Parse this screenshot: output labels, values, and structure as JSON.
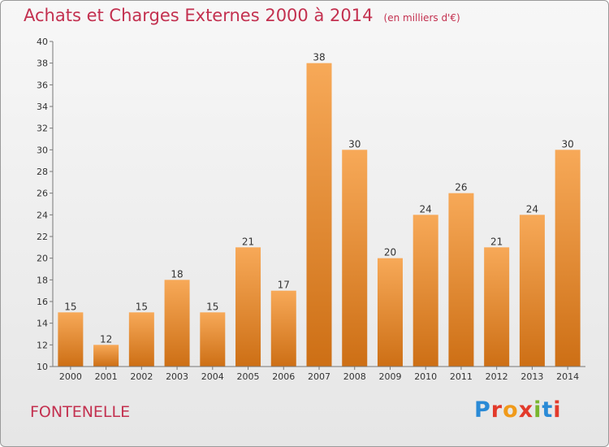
{
  "header": {
    "title": "Achats et Charges Externes 2000 à 2014",
    "unit_note": "(en milliers d'€)"
  },
  "footer": {
    "place": "FONTENELLE",
    "logo": "Proxiti"
  },
  "colors": {
    "title": "#c3304f",
    "bar_top": "#f7a958",
    "bar_bottom": "#cd6f15"
  },
  "chart_data": {
    "type": "bar",
    "title": "Achats et Charges Externes 2000 à 2014",
    "subtitle": "(en milliers d'€)",
    "categories": [
      "2000",
      "2001",
      "2002",
      "2003",
      "2004",
      "2005",
      "2006",
      "2007",
      "2008",
      "2009",
      "2010",
      "2011",
      "2012",
      "2013",
      "2014"
    ],
    "values": [
      15,
      12,
      15,
      18,
      15,
      21,
      17,
      38,
      30,
      20,
      24,
      26,
      21,
      24,
      30
    ],
    "ylim": [
      10,
      40
    ],
    "yticks": [
      10,
      12,
      14,
      16,
      18,
      20,
      22,
      24,
      26,
      28,
      30,
      32,
      34,
      36,
      38,
      40
    ],
    "grid": false,
    "data_labels": true
  }
}
